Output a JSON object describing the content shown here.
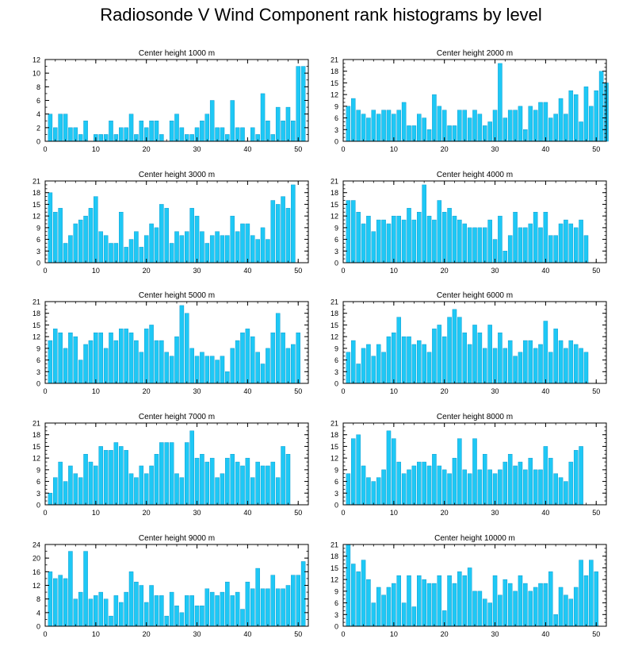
{
  "title": "Radiosonde V Wind Component rank histograms by level",
  "colors": {
    "bar": "#1ec8f5",
    "bar_edge": "#0090c8",
    "axis": "#000000"
  },
  "chart_data": [
    {
      "type": "bar",
      "title": "Center height 1000 m",
      "xlim": [
        0,
        52
      ],
      "xticks": [
        0,
        10,
        20,
        30,
        40,
        50
      ],
      "ylim": [
        0,
        12
      ],
      "yticks": [
        0,
        2,
        4,
        6,
        8,
        10,
        12
      ],
      "grid": false,
      "values": [
        4,
        2,
        4,
        4,
        2,
        2,
        1,
        3,
        0,
        1,
        1,
        1,
        3,
        1,
        2,
        2,
        4,
        1,
        3,
        2,
        3,
        3,
        1,
        0,
        3,
        4,
        2,
        1,
        1,
        2,
        3,
        4,
        6,
        2,
        2,
        1,
        6,
        2,
        2,
        0,
        2,
        1,
        7,
        3,
        1,
        5,
        3,
        5,
        3,
        11,
        11
      ]
    },
    {
      "type": "bar",
      "title": "Center height 2000 m",
      "xlim": [
        0,
        52
      ],
      "xticks": [
        0,
        10,
        20,
        30,
        40,
        50
      ],
      "ylim": [
        0,
        21
      ],
      "yticks": [
        0,
        3,
        6,
        9,
        12,
        15,
        18,
        21
      ],
      "grid": false,
      "values": [
        9,
        11,
        8,
        7,
        6,
        8,
        7,
        8,
        8,
        7,
        8,
        10,
        4,
        4,
        7,
        6,
        3,
        12,
        9,
        8,
        4,
        4,
        8,
        8,
        6,
        8,
        7,
        4,
        5,
        8,
        20,
        6,
        8,
        8,
        9,
        3,
        9,
        8,
        10,
        10,
        6,
        7,
        11,
        7,
        13,
        12,
        5,
        14,
        9,
        13,
        18,
        15
      ]
    },
    {
      "type": "bar",
      "title": "Center height 3000 m",
      "xlim": [
        0,
        52
      ],
      "xticks": [
        0,
        10,
        20,
        30,
        40,
        50
      ],
      "ylim": [
        0,
        21
      ],
      "yticks": [
        0,
        3,
        6,
        9,
        12,
        15,
        18,
        21
      ],
      "grid": false,
      "values": [
        18,
        13,
        14,
        5,
        7,
        10,
        11,
        12,
        14,
        17,
        8,
        7,
        5,
        5,
        13,
        4,
        6,
        8,
        4,
        7,
        10,
        9,
        15,
        14,
        5,
        8,
        7,
        8,
        14,
        12,
        8,
        5,
        7,
        8,
        7,
        7,
        12,
        8,
        10,
        10,
        7,
        6,
        9,
        6,
        16,
        15,
        17,
        14,
        20
      ]
    },
    {
      "type": "bar",
      "title": "Center height 4000 m",
      "xlim": [
        0,
        52
      ],
      "xticks": [
        0,
        10,
        20,
        30,
        40,
        50
      ],
      "ylim": [
        0,
        21
      ],
      "yticks": [
        0,
        3,
        6,
        9,
        12,
        15,
        18,
        21
      ],
      "grid": false,
      "values": [
        16,
        16,
        13,
        10,
        12,
        8,
        11,
        11,
        10,
        12,
        12,
        11,
        14,
        11,
        13,
        20,
        12,
        11,
        16,
        13,
        14,
        12,
        11,
        10,
        9,
        9,
        9,
        9,
        11,
        6,
        12,
        3,
        7,
        13,
        9,
        9,
        10,
        13,
        9,
        13,
        7,
        7,
        10,
        11,
        10,
        9,
        11,
        7
      ]
    },
    {
      "type": "bar",
      "title": "Center height 5000 m",
      "xlim": [
        0,
        52
      ],
      "xticks": [
        0,
        10,
        20,
        30,
        40,
        50
      ],
      "ylim": [
        0,
        21
      ],
      "yticks": [
        0,
        3,
        6,
        9,
        12,
        15,
        18,
        21
      ],
      "grid": false,
      "values": [
        11,
        14,
        13,
        9,
        13,
        12,
        6,
        10,
        11,
        13,
        13,
        9,
        13,
        11,
        14,
        14,
        13,
        11,
        8,
        14,
        15,
        11,
        11,
        8,
        7,
        12,
        20,
        18,
        9,
        7,
        8,
        7,
        7,
        6,
        7,
        3,
        9,
        11,
        13,
        14,
        12,
        8,
        5,
        9,
        13,
        18,
        13,
        9,
        10,
        13
      ]
    },
    {
      "type": "bar",
      "title": "Center height 6000 m",
      "xlim": [
        0,
        52
      ],
      "xticks": [
        0,
        10,
        20,
        30,
        40,
        50
      ],
      "ylim": [
        0,
        21
      ],
      "yticks": [
        0,
        3,
        6,
        9,
        12,
        15,
        18,
        21
      ],
      "grid": false,
      "values": [
        8,
        11,
        5,
        9,
        10,
        7,
        10,
        8,
        12,
        13,
        17,
        12,
        12,
        10,
        11,
        10,
        8,
        14,
        15,
        12,
        17,
        19,
        17,
        13,
        10,
        15,
        13,
        9,
        15,
        9,
        13,
        9,
        11,
        7,
        8,
        11,
        11,
        9,
        10,
        16,
        8,
        14,
        11,
        9,
        11,
        10,
        9,
        8
      ]
    },
    {
      "type": "bar",
      "title": "Center height 7000 m",
      "xlim": [
        0,
        52
      ],
      "xticks": [
        0,
        10,
        20,
        30,
        40,
        50
      ],
      "ylim": [
        0,
        21
      ],
      "yticks": [
        0,
        3,
        6,
        9,
        12,
        15,
        18,
        21
      ],
      "grid": false,
      "values": [
        3,
        7,
        11,
        6,
        10,
        8,
        7,
        13,
        11,
        10,
        15,
        14,
        14,
        16,
        15,
        14,
        8,
        7,
        10,
        8,
        10,
        13,
        16,
        16,
        16,
        8,
        7,
        16,
        19,
        12,
        13,
        11,
        12,
        7,
        8,
        12,
        13,
        11,
        10,
        12,
        7,
        11,
        10,
        10,
        11,
        7,
        15,
        13
      ]
    },
    {
      "type": "bar",
      "title": "Center height 8000 m",
      "xlim": [
        0,
        52
      ],
      "xticks": [
        0,
        10,
        20,
        30,
        40,
        50
      ],
      "ylim": [
        0,
        21
      ],
      "yticks": [
        0,
        3,
        6,
        9,
        12,
        15,
        18,
        21
      ],
      "grid": false,
      "values": [
        8,
        17,
        18,
        10,
        7,
        6,
        7,
        9,
        19,
        17,
        11,
        8,
        9,
        10,
        11,
        11,
        10,
        13,
        10,
        9,
        8,
        12,
        17,
        9,
        8,
        17,
        9,
        13,
        9,
        8,
        9,
        11,
        13,
        10,
        11,
        9,
        12,
        9,
        9,
        15,
        12,
        8,
        7,
        6,
        11,
        14,
        15
      ]
    },
    {
      "type": "bar",
      "title": "Center height 9000 m",
      "xlim": [
        0,
        52
      ],
      "xticks": [
        0,
        10,
        20,
        30,
        40,
        50
      ],
      "ylim": [
        0,
        24
      ],
      "yticks": [
        0,
        4,
        8,
        12,
        16,
        20,
        24
      ],
      "grid": false,
      "values": [
        16,
        14,
        15,
        14,
        22,
        8,
        10,
        22,
        8,
        9,
        10,
        8,
        3,
        9,
        7,
        10,
        16,
        13,
        12,
        7,
        12,
        9,
        9,
        3,
        10,
        6,
        4,
        9,
        9,
        6,
        6,
        11,
        10,
        9,
        10,
        13,
        9,
        10,
        5,
        13,
        11,
        17,
        11,
        11,
        15,
        11,
        11,
        12,
        15,
        15,
        19
      ]
    },
    {
      "type": "bar",
      "title": "Center height 10000 m",
      "xlim": [
        0,
        52
      ],
      "xticks": [
        0,
        10,
        20,
        30,
        40,
        50
      ],
      "ylim": [
        0,
        21
      ],
      "yticks": [
        0,
        3,
        6,
        9,
        12,
        15,
        18,
        21
      ],
      "grid": false,
      "values": [
        21,
        16,
        14,
        17,
        12,
        6,
        10,
        8,
        10,
        11,
        13,
        6,
        13,
        5,
        13,
        12,
        11,
        11,
        13,
        4,
        13,
        11,
        14,
        13,
        15,
        9,
        9,
        7,
        6,
        13,
        8,
        12,
        11,
        9,
        13,
        11,
        9,
        10,
        11,
        11,
        14,
        3,
        10,
        8,
        7,
        10,
        17,
        13,
        17,
        14
      ]
    }
  ]
}
